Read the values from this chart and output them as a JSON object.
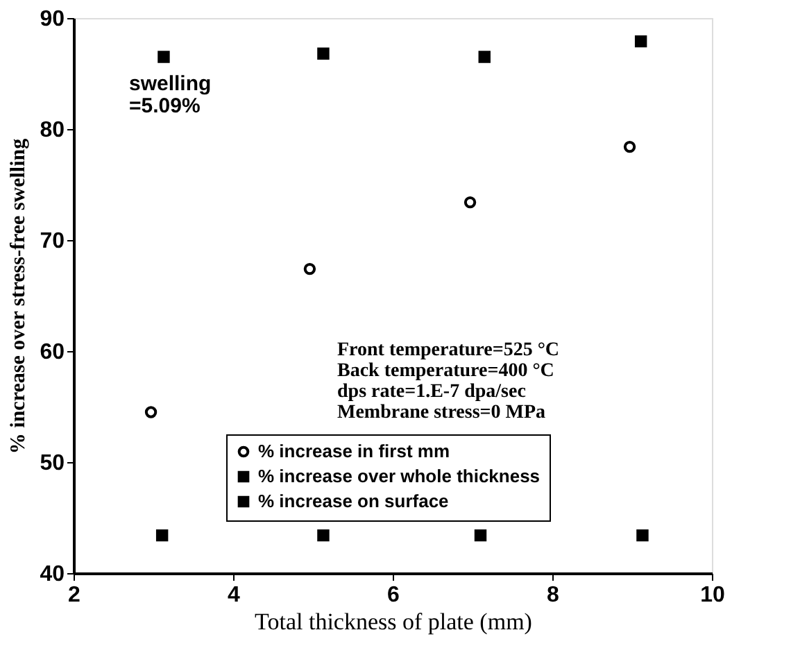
{
  "chart_data": {
    "type": "scatter",
    "xlabel": "Total thickness of plate (mm)",
    "ylabel": "% increase over stress-free swelling",
    "xlim": [
      2,
      10
    ],
    "xticks": [
      2,
      4,
      6,
      8,
      10
    ],
    "ylim": [
      40,
      90
    ],
    "yticks": [
      40,
      50,
      60,
      70,
      80,
      90
    ],
    "grid": false,
    "legend": "bottom right",
    "annotations": [
      "swelling\n=5.09%",
      "Front temperature=525 °C\nBack temperature=400 °C\ndps rate=1.E-7 dpa/sec\nMembrane stress=0 MPa"
    ],
    "series": [
      {
        "name": "% increase in first mm",
        "color": "#000000",
        "marker": "circle",
        "x": [
          2.97,
          4.96,
          6.97,
          8.97
        ],
        "values": [
          54.5,
          67.4,
          73.4,
          78.4
        ]
      },
      {
        "name": "% increase over whole thickness",
        "color": "#000000",
        "marker": "square",
        "x": [
          3.11,
          5.13,
          7.1,
          9.13
        ],
        "values": [
          43.4,
          43.4,
          43.4,
          43.4
        ]
      },
      {
        "name": "% increase on surface",
        "color": "#000000",
        "marker": "square",
        "x": [
          3.13,
          5.13,
          7.15,
          9.11
        ],
        "values": [
          86.5,
          86.8,
          86.5,
          87.9
        ]
      }
    ]
  }
}
